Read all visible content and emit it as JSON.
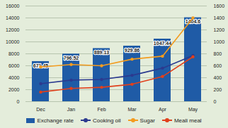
{
  "chart_data": {
    "type": "bar",
    "categories": [
      "Dec",
      "Jan",
      "Feb",
      "Mar",
      "Apr",
      "May"
    ],
    "series": [
      {
        "name": "Exchange rate",
        "type": "bar",
        "axis": "y2",
        "color": "#1f5ba6",
        "values": [
          671.45,
          796.52,
          889.13,
          929.86,
          1047.44,
          1404.6
        ]
      },
      {
        "name": "Cooking oil",
        "type": "line",
        "color": "#2b3a8f",
        "marker": "circle",
        "values": [
          3000,
          3600,
          3700,
          4400,
          5600,
          7700
        ]
      },
      {
        "name": "Sugar",
        "type": "line",
        "color": "#f39c1f",
        "marker": "circle",
        "values": [
          5800,
          6200,
          6000,
          7100,
          7600,
          14000
        ]
      },
      {
        "name": "Meali meal",
        "type": "line",
        "color": "#e0401c",
        "marker": "circle",
        "values": [
          1600,
          2200,
          2400,
          2900,
          4200,
          7500
        ]
      }
    ],
    "ylim": [
      0,
      16000
    ],
    "yticks": [
      0,
      2000,
      4000,
      6000,
      8000,
      10000,
      12000,
      14000,
      16000
    ],
    "y2lim": [
      0,
      1600
    ],
    "y2ticks": [
      0,
      200,
      400,
      600,
      800,
      1000,
      1200,
      1400,
      1600
    ],
    "grid": true,
    "data_labels": true,
    "legend": "bottom"
  }
}
